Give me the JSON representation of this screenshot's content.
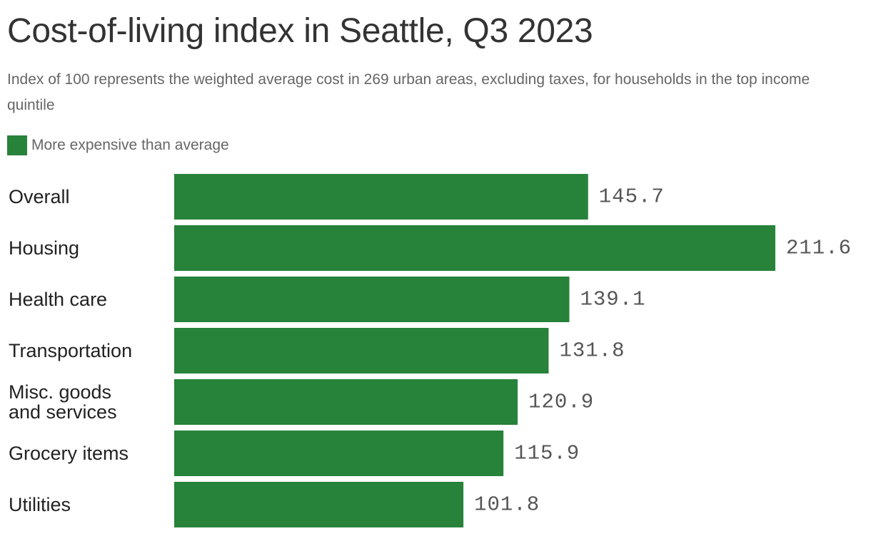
{
  "chart_data": {
    "type": "bar",
    "orientation": "horizontal",
    "title": "Cost-of-living index in Seattle, Q3 2023",
    "subtitle": "Index of 100 represents the weighted average cost in 269 urban areas, excluding taxes, for households in the top income quintile",
    "legend": [
      {
        "label": "More expensive than average",
        "color": "#27823a"
      }
    ],
    "legend_position": "top-left",
    "grid": false,
    "categories": [
      [
        "Overall"
      ],
      [
        "Housing"
      ],
      [
        "Health care"
      ],
      [
        "Transportation"
      ],
      [
        "Misc. goods",
        "and services"
      ],
      [
        "Grocery items"
      ],
      [
        "Utilities"
      ]
    ],
    "values": [
      145.7,
      211.6,
      139.1,
      131.8,
      120.9,
      115.9,
      101.8
    ],
    "value_labels": [
      "145.7",
      "211.6",
      "139.1",
      "131.8",
      "120.9",
      "115.9",
      "101.8"
    ],
    "xlim": [
      0,
      211.6
    ],
    "bar_color": "#27823a"
  }
}
